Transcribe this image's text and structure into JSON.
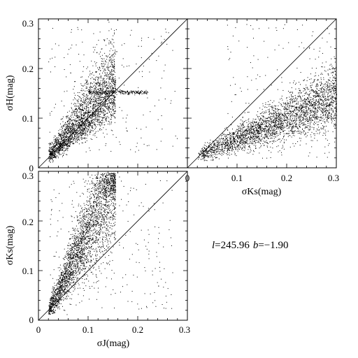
{
  "chart_data": [
    {
      "type": "scatter",
      "panel": "top-left",
      "xlabel": "",
      "ylabel": "σH(mag)",
      "xlim": [
        0,
        0.3
      ],
      "ylim": [
        0,
        0.3
      ],
      "xticks": [],
      "yticks": [
        "0",
        "0.1",
        "0.2",
        "0.3"
      ],
      "reference_line": "y = x",
      "approx_distribution": {
        "description": "dense cloud rising from (0.02, 0.03); bulk between x 0.04-0.15 and y 0.05-0.20; horizontal streak at y≈0.15 extending to x≈0.22",
        "x_range": [
          0.015,
          0.22
        ],
        "y_range": [
          0.02,
          0.3
        ],
        "streak_y": 0.153
      }
    },
    {
      "type": "scatter",
      "panel": "top-right",
      "xlabel": "σKs(mag)",
      "ylabel": "",
      "xlim": [
        0,
        0.3
      ],
      "ylim": [
        0,
        0.3
      ],
      "xticks": [
        "0",
        "0.1",
        "0.2",
        "0.3"
      ],
      "yticks": [],
      "reference_line": "y = x",
      "approx_distribution": {
        "description": "elongated band from (0.02, 0.02) to (0.3, 0.15), spreading upward to y≈0.3 at high x",
        "x_range": [
          0.015,
          0.3
        ],
        "y_range": [
          0.015,
          0.3
        ]
      }
    },
    {
      "type": "scatter",
      "panel": "bottom-left",
      "xlabel": "σJ(mag)",
      "ylabel": "σKs(mag)",
      "xlim": [
        0,
        0.3
      ],
      "ylim": [
        0,
        0.3
      ],
      "xticks": [
        "0",
        "0.1",
        "0.2",
        "0.3"
      ],
      "yticks": [
        "0",
        "0.1",
        "0.2",
        "0.3"
      ],
      "reference_line": "y = x",
      "approx_distribution": {
        "description": "steep dense cloud from (0.02, 0.02) rising to y≈0.3 by x≈0.1; bulk between x 0.04-0.15",
        "x_range": [
          0.015,
          0.22
        ],
        "y_range": [
          0.015,
          0.3
        ]
      }
    }
  ],
  "annotation": {
    "l_symbol": "l",
    "l_value": "=245.96",
    "b_symbol": "b",
    "b_value": "=−1.90"
  }
}
